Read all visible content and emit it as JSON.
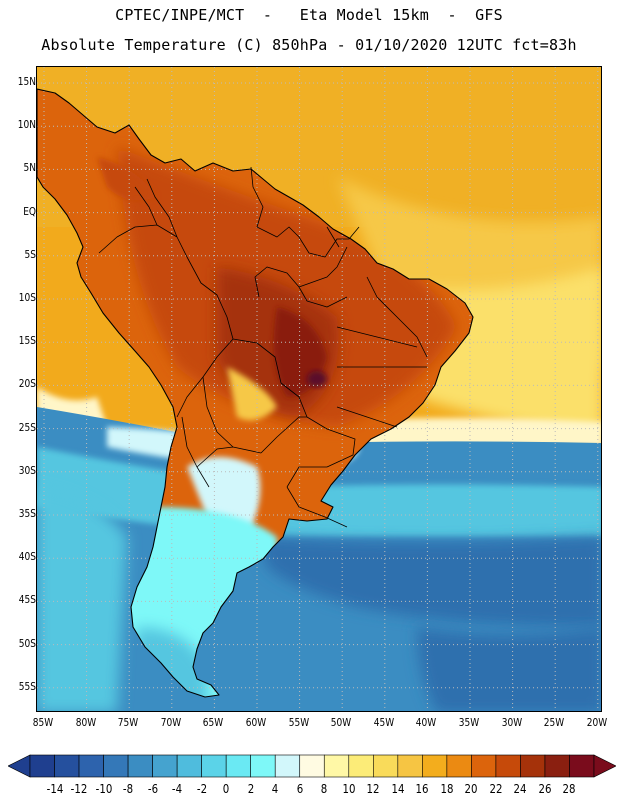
{
  "title_line1": "CPTEC/INPE/MCT  -   Eta Model 15km  -  GFS",
  "title_line2": "Absolute Temperature (C) 850hPa - 01/10/2020 12UTC fct=83h",
  "lat_labels": [
    "15N",
    "10N",
    "5N",
    "EQ",
    "5S",
    "10S",
    "15S",
    "20S",
    "25S",
    "30S",
    "35S",
    "40S",
    "45S",
    "50S",
    "55S"
  ],
  "lon_labels": [
    "85W",
    "80W",
    "75W",
    "70W",
    "65W",
    "60W",
    "55W",
    "50W",
    "45W",
    "40W",
    "35W",
    "30W",
    "25W",
    "20W"
  ],
  "colorbar": {
    "labels": [
      "-14",
      "-12",
      "-10",
      "-8",
      "-6",
      "-4",
      "-2",
      "0",
      "2",
      "4",
      "6",
      "8",
      "10",
      "12",
      "14",
      "16",
      "18",
      "20",
      "22",
      "24",
      "26",
      "28"
    ],
    "colors": [
      "#1f3f8f",
      "#25509e",
      "#2d63ad",
      "#3478b8",
      "#3b8dc2",
      "#45a3cf",
      "#4fbcdd",
      "#5bd3e8",
      "#6ae9f3",
      "#7ef8f8",
      "#d2f7fb",
      "#fffbe2",
      "#fff8a6",
      "#fcec78",
      "#f9db5a",
      "#f6c543",
      "#f3ad1d",
      "#eb8a12",
      "#dc640c",
      "#c64a0a",
      "#a5320a",
      "#8a1f10",
      "#7a0c1c"
    ],
    "under_color": "#1f3f8f",
    "over_color": "#7a0c1c"
  },
  "colors": {
    "ocean_warm": "#f2aa1c",
    "ocean_tropical": "#eeb42c",
    "ocean_sub": "#f6c846",
    "ocean_yellow": "#fbe06a",
    "front_pale": "#fff6c8",
    "front_cyan": "#d2f7fb",
    "cold_light": "#7ef8f8",
    "cold_mid": "#55c6e0",
    "cold_deep": "#3b8dc2",
    "cold_deeper": "#2d6fae",
    "land_hot": "#dc640c",
    "land_hotter": "#c64a0a",
    "land_core": "#a5320a",
    "land_max": "#8a1f10",
    "border": "#000000",
    "grid": "#bbbbbb"
  }
}
